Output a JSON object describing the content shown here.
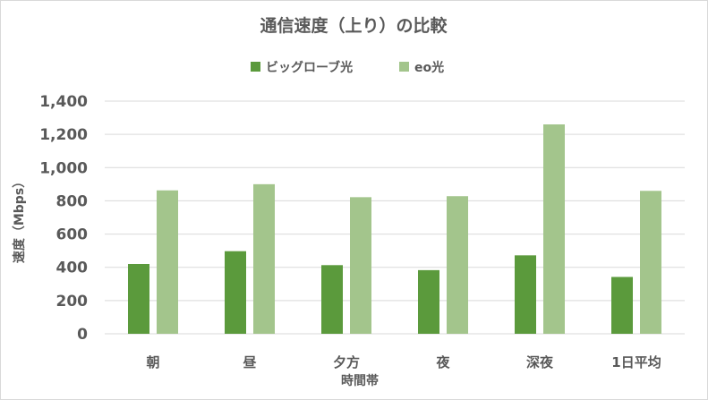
{
  "chart_data": {
    "type": "bar",
    "title": "通信速度（上り）の比較",
    "xlabel": "時間帯",
    "ylabel": "速度（Mbps）",
    "categories": [
      "朝",
      "昼",
      "夕方",
      "夜",
      "深夜",
      "1日平均"
    ],
    "series": [
      {
        "name": "ビッグローブ光",
        "color": "#5b9a3c",
        "values": [
          420,
          497,
          413,
          383,
          472,
          342
        ]
      },
      {
        "name": "eo光",
        "color": "#a3c58c",
        "values": [
          863,
          900,
          822,
          828,
          1260,
          860
        ]
      }
    ],
    "ylim": [
      0,
      1400
    ],
    "yticks": [
      "0",
      "200",
      "400",
      "600",
      "800",
      "1,000",
      "1,200",
      "1,400"
    ],
    "ytick_values": [
      0,
      200,
      400,
      600,
      800,
      1000,
      1200,
      1400
    ],
    "grid": true,
    "legend_position": "top"
  }
}
